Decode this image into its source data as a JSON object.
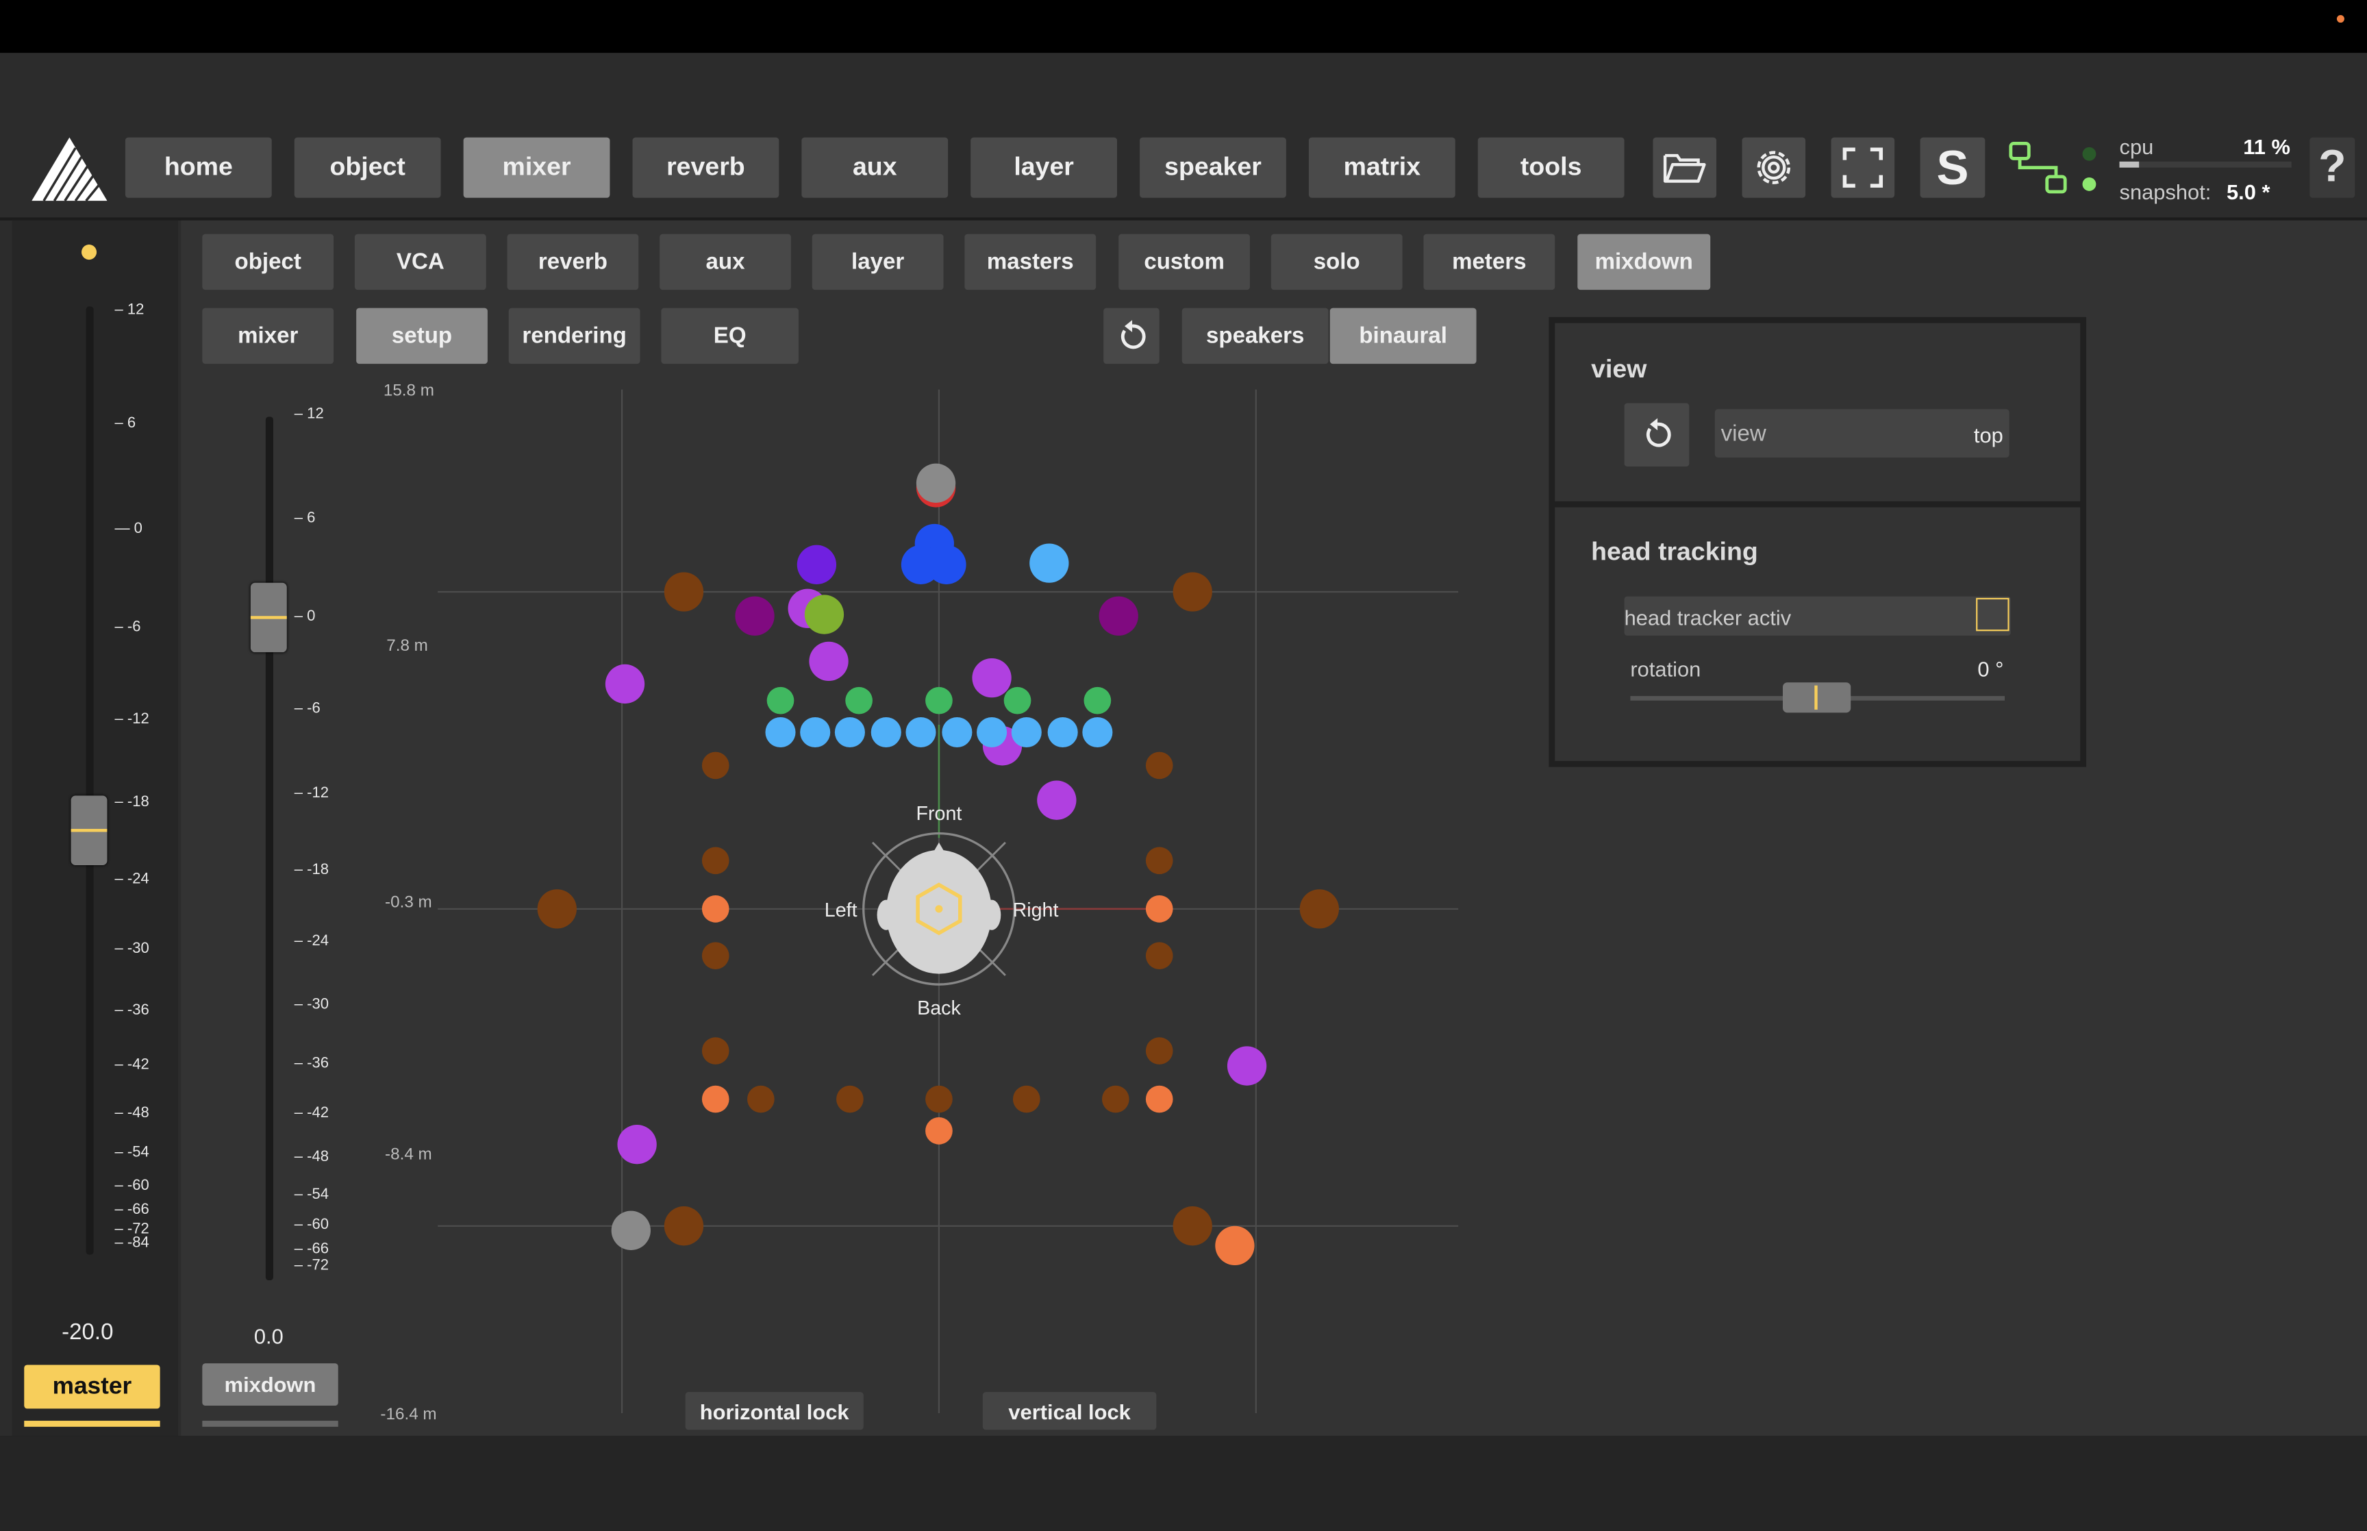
{
  "nav": {
    "items": [
      {
        "label": "home"
      },
      {
        "label": "object"
      },
      {
        "label": "mixer"
      },
      {
        "label": "reverb"
      },
      {
        "label": "aux"
      },
      {
        "label": "layer"
      },
      {
        "label": "speaker"
      },
      {
        "label": "matrix"
      },
      {
        "label": "tools"
      }
    ],
    "active": "mixer",
    "icons": [
      "folder-open-icon",
      "gear-icon",
      "fullscreen-icon",
      "s-icon",
      "routing-icon",
      "help-icon"
    ],
    "help_label": "?",
    "s_label": "S"
  },
  "status": {
    "cpu_label": "cpu",
    "cpu_value": "11 %",
    "cpu_fraction": 0.11,
    "snapshot_label": "snapshot:",
    "snapshot_value": "5.0 *"
  },
  "tabs_row1": [
    {
      "label": "object"
    },
    {
      "label": "VCA"
    },
    {
      "label": "reverb"
    },
    {
      "label": "aux"
    },
    {
      "label": "layer"
    },
    {
      "label": "masters"
    },
    {
      "label": "custom"
    },
    {
      "label": "solo"
    },
    {
      "label": "meters"
    },
    {
      "label": "mixdown"
    }
  ],
  "tabs_row1_active": "mixdown",
  "tabs_row2": [
    {
      "label": "mixer"
    },
    {
      "label": "setup"
    },
    {
      "label": "rendering"
    },
    {
      "label": "EQ"
    }
  ],
  "tabs_row2_active": "setup",
  "render_mode": {
    "options": [
      "speakers",
      "binaural"
    ],
    "selected": "binaural"
  },
  "master": {
    "label": "master",
    "value": "-20.0",
    "scale": [
      "12",
      "6",
      "0",
      "-6",
      "-12",
      "-18",
      "-24",
      "-30",
      "-36",
      "-42",
      "-48",
      "-54",
      "-60",
      "-66",
      "-72",
      "-84"
    ],
    "accent": "#f7ce5b"
  },
  "mixdown": {
    "label": "mixdown",
    "value": "0.0",
    "scale": [
      "12",
      "6",
      "0",
      "-6",
      "-12",
      "-18",
      "-24",
      "-30",
      "-36",
      "-42",
      "-48",
      "-54",
      "-60",
      "-66",
      "-72"
    ]
  },
  "field": {
    "y_labels": [
      "15.8 m",
      "7.8 m",
      "-0.3 m",
      "-8.4 m",
      "-16.4 m"
    ],
    "listener": {
      "front": "Front",
      "back": "Back",
      "left": "Left",
      "right": "Right"
    },
    "horizontal_lock": "horizontal lock",
    "vertical_lock": "vertical lock",
    "colors": {
      "speaker_dark": "#7a3e10",
      "speaker_orange": "#f07840",
      "object_purple": "#b040e0",
      "object_violet": "#7020e0",
      "object_magenta": "#800a80",
      "object_blue": "#2050f0",
      "object_lightblue": "#50b0f8",
      "object_green": "#40b860",
      "object_olive": "#80b030",
      "object_grey": "#8a8a8a"
    }
  },
  "view_panel": {
    "title": "view",
    "view_label": "view",
    "view_value": "top"
  },
  "head_tracking": {
    "title": "head tracking",
    "activ_label": "head tracker activ",
    "activ_checked": false,
    "rotation_label": "rotation",
    "rotation_value": "0 °"
  }
}
